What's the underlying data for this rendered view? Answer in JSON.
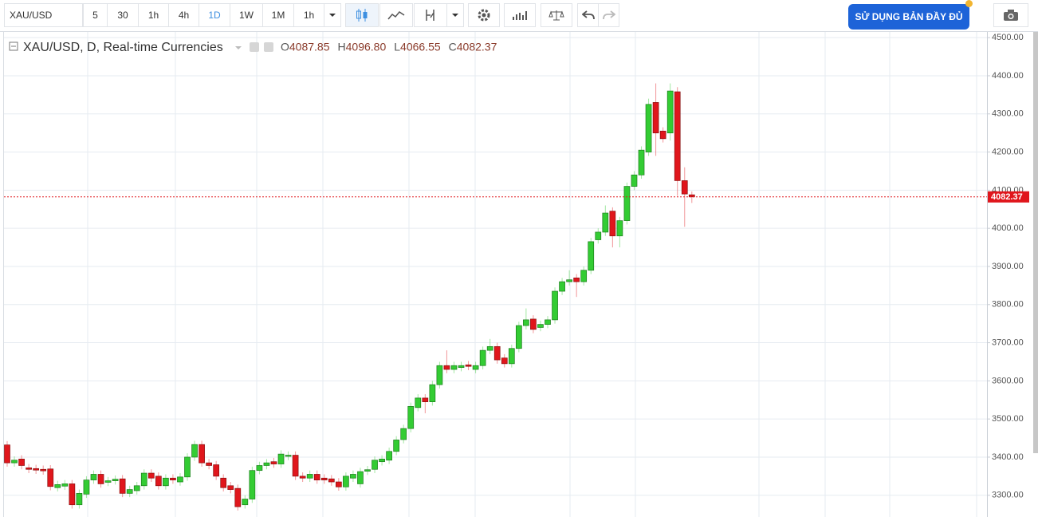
{
  "toolbar": {
    "symbol": "XAU/USD",
    "intervals": [
      "5",
      "30",
      "1h",
      "4h",
      "1D",
      "1W",
      "1M",
      "1h"
    ],
    "cta": "SỬ DỤNG BẢN ĐẦY ĐỦ"
  },
  "chart_data": {
    "type": "candlestick",
    "title": "XAU/USD, D, Real-time Currencies",
    "ohlc_labels": [
      "O",
      "H",
      "L",
      "C"
    ],
    "ohlc_values": [
      "4087.85",
      "4096.80",
      "4066.55",
      "4082.37"
    ],
    "up_color": "#33cc33",
    "down_color": "#e0161c",
    "open": [
      3432,
      3385,
      3395,
      3372,
      3370,
      3368,
      3369,
      3320,
      3324,
      3330,
      3275,
      3303,
      3340,
      3355,
      3334,
      3338,
      3343,
      3305,
      3312,
      3325,
      3358,
      3350,
      3325,
      3345,
      3335,
      3348,
      3400,
      3433,
      3385,
      3380,
      3345,
      3325,
      3318,
      3275,
      3290,
      3365,
      3378,
      3388,
      3382,
      3402,
      3405,
      3350,
      3345,
      3355,
      3345,
      3343,
      3335,
      3322,
      3345,
      3330,
      3363,
      3368,
      3388,
      3392,
      3415,
      3446,
      3475,
      3530,
      3555,
      3545,
      3590,
      3640,
      3630,
      3635,
      3642,
      3630,
      3640,
      3680,
      3690,
      3660,
      3645,
      3685,
      3745,
      3762,
      3740,
      3748,
      3760,
      3835,
      3860,
      3870,
      3860,
      3890,
      3970,
      3990,
      4045,
      3980,
      4020,
      4110,
      4140,
      4200,
      4330,
      4255,
      4250,
      4358,
      4125,
      4087.85
    ],
    "high": [
      3442,
      3402,
      3405,
      3382,
      3380,
      3378,
      3379,
      3338,
      3340,
      3340,
      3315,
      3350,
      3365,
      3365,
      3348,
      3352,
      3353,
      3325,
      3335,
      3368,
      3368,
      3360,
      3355,
      3355,
      3358,
      3410,
      3443,
      3443,
      3395,
      3390,
      3355,
      3335,
      3328,
      3300,
      3375,
      3388,
      3395,
      3398,
      3418,
      3415,
      3415,
      3360,
      3365,
      3365,
      3355,
      3353,
      3345,
      3360,
      3365,
      3372,
      3377,
      3402,
      3405,
      3425,
      3455,
      3485,
      3543,
      3565,
      3565,
      3600,
      3650,
      3680,
      3650,
      3650,
      3652,
      3650,
      3690,
      3710,
      3700,
      3670,
      3695,
      3755,
      3790,
      3772,
      3758,
      3770,
      3845,
      3870,
      3890,
      3880,
      3900,
      3975,
      4000,
      4060,
      4055,
      4030,
      4120,
      4150,
      4215,
      4340,
      4380,
      4265,
      4380,
      4370,
      4160,
      4096.8
    ],
    "low": [
      3375,
      3375,
      3368,
      3358,
      3356,
      3354,
      3313,
      3310,
      3314,
      3265,
      3265,
      3293,
      3330,
      3320,
      3324,
      3328,
      3295,
      3295,
      3302,
      3315,
      3335,
      3315,
      3315,
      3330,
      3325,
      3338,
      3390,
      3375,
      3368,
      3340,
      3310,
      3305,
      3260,
      3265,
      3280,
      3355,
      3368,
      3372,
      3372,
      3392,
      3340,
      3335,
      3335,
      3330,
      3330,
      3325,
      3312,
      3312,
      3335,
      3320,
      3353,
      3358,
      3378,
      3382,
      3405,
      3436,
      3465,
      3520,
      3515,
      3535,
      3580,
      3620,
      3620,
      3625,
      3628,
      3620,
      3630,
      3670,
      3645,
      3635,
      3635,
      3675,
      3735,
      3725,
      3730,
      3738,
      3750,
      3825,
      3850,
      3820,
      3850,
      3880,
      3960,
      3980,
      3950,
      3950,
      4010,
      4100,
      4130,
      4190,
      4190,
      4225,
      4230,
      4085,
      4004,
      4066.55
    ],
    "close": [
      3385,
      3392,
      3378,
      3368,
      3366,
      3364,
      3323,
      3328,
      3330,
      3275,
      3305,
      3340,
      3355,
      3330,
      3338,
      3342,
      3305,
      3315,
      3325,
      3358,
      3345,
      3325,
      3345,
      3340,
      3348,
      3400,
      3433,
      3385,
      3378,
      3350,
      3320,
      3315,
      3270,
      3290,
      3365,
      3378,
      3385,
      3382,
      3408,
      3405,
      3350,
      3345,
      3355,
      3340,
      3340,
      3335,
      3322,
      3350,
      3355,
      3362,
      3367,
      3392,
      3395,
      3415,
      3445,
      3475,
      3533,
      3555,
      3545,
      3590,
      3640,
      3630,
      3640,
      3640,
      3638,
      3640,
      3680,
      3690,
      3655,
      3645,
      3685,
      3745,
      3760,
      3735,
      3748,
      3760,
      3835,
      3860,
      3865,
      3860,
      3890,
      3965,
      3990,
      4040,
      3980,
      4020,
      4110,
      4140,
      4205,
      4325,
      4250,
      4235,
      4360,
      4125,
      4090,
      4082.37
    ],
    "ylim": [
      3243,
      4515
    ],
    "yticks": [
      {
        "value": 3300,
        "label": "3300.00"
      },
      {
        "value": 3400,
        "label": "3400.00"
      },
      {
        "value": 3500,
        "label": "3500.00"
      },
      {
        "value": 3600,
        "label": "3600.00"
      },
      {
        "value": 3700,
        "label": "3700.00"
      },
      {
        "value": 3800,
        "label": "3800.00"
      },
      {
        "value": 3900,
        "label": "3900.00"
      },
      {
        "value": 4000,
        "label": "4000.00"
      },
      {
        "value": 4100,
        "label": "4100.00"
      },
      {
        "value": 4200,
        "label": "4200.00"
      },
      {
        "value": 4300,
        "label": "4300.00"
      },
      {
        "value": 4400,
        "label": "4400.00"
      },
      {
        "value": 4500,
        "label": "4500.00"
      }
    ],
    "grid": true,
    "last_price_color": "#e0161c"
  }
}
